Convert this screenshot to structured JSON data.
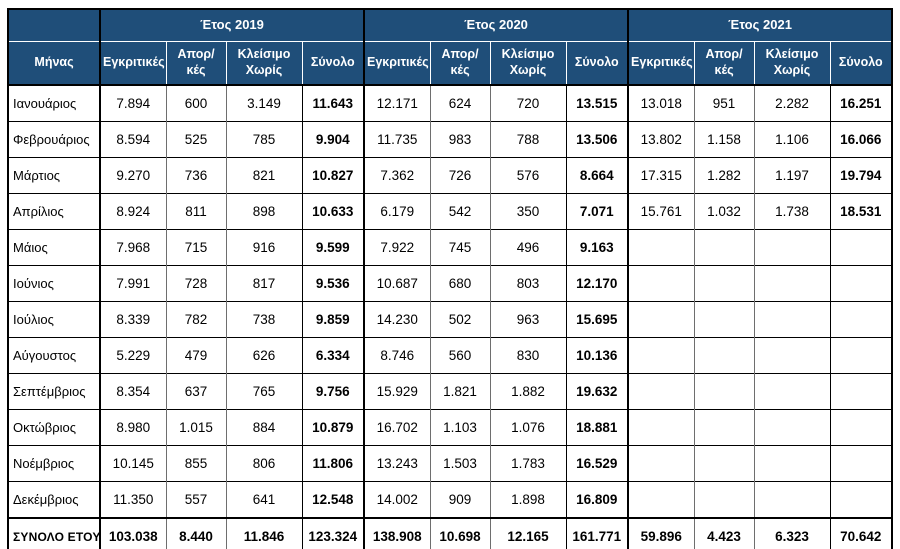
{
  "table": {
    "corner_label": "",
    "month_header": "Μήνας",
    "year_headers": [
      "Έτος 2019",
      "Έτος 2020",
      "Έτος 2021"
    ],
    "sub_headers": [
      "Εγκριτικές",
      "Απορ/κές",
      "Κλείσιμο Χωρίς",
      "Σύνολο"
    ],
    "rows": [
      {
        "month": "Ιανουάριος",
        "values": [
          "7.894",
          "600",
          "3.149",
          "11.643",
          "12.171",
          "624",
          "720",
          "13.515",
          "13.018",
          "951",
          "2.282",
          "16.251"
        ]
      },
      {
        "month": "Φεβρουάριος",
        "values": [
          "8.594",
          "525",
          "785",
          "9.904",
          "11.735",
          "983",
          "788",
          "13.506",
          "13.802",
          "1.158",
          "1.106",
          "16.066"
        ]
      },
      {
        "month": "Μάρτιος",
        "values": [
          "9.270",
          "736",
          "821",
          "10.827",
          "7.362",
          "726",
          "576",
          "8.664",
          "17.315",
          "1.282",
          "1.197",
          "19.794"
        ]
      },
      {
        "month": "Απρίλιος",
        "values": [
          "8.924",
          "811",
          "898",
          "10.633",
          "6.179",
          "542",
          "350",
          "7.071",
          "15.761",
          "1.032",
          "1.738",
          "18.531"
        ]
      },
      {
        "month": "Μάιος",
        "values": [
          "7.968",
          "715",
          "916",
          "9.599",
          "7.922",
          "745",
          "496",
          "9.163",
          "",
          "",
          "",
          ""
        ]
      },
      {
        "month": "Ιούνιος",
        "values": [
          "7.991",
          "728",
          "817",
          "9.536",
          "10.687",
          "680",
          "803",
          "12.170",
          "",
          "",
          "",
          ""
        ]
      },
      {
        "month": "Ιούλιος",
        "values": [
          "8.339",
          "782",
          "738",
          "9.859",
          "14.230",
          "502",
          "963",
          "15.695",
          "",
          "",
          "",
          ""
        ]
      },
      {
        "month": "Αύγουστος",
        "values": [
          "5.229",
          "479",
          "626",
          "6.334",
          "8.746",
          "560",
          "830",
          "10.136",
          "",
          "",
          "",
          ""
        ]
      },
      {
        "month": "Σεπτέμβριος",
        "values": [
          "8.354",
          "637",
          "765",
          "9.756",
          "15.929",
          "1.821",
          "1.882",
          "19.632",
          "",
          "",
          "",
          ""
        ]
      },
      {
        "month": "Οκτώβριος",
        "values": [
          "8.980",
          "1.015",
          "884",
          "10.879",
          "16.702",
          "1.103",
          "1.076",
          "18.881",
          "",
          "",
          "",
          ""
        ]
      },
      {
        "month": "Νοέμβριος",
        "values": [
          "10.145",
          "855",
          "806",
          "11.806",
          "13.243",
          "1.503",
          "1.783",
          "16.529",
          "",
          "",
          "",
          ""
        ]
      },
      {
        "month": "Δεκέμβριος",
        "values": [
          "11.350",
          "557",
          "641",
          "12.548",
          "14.002",
          "909",
          "1.898",
          "16.809",
          "",
          "",
          "",
          ""
        ]
      }
    ],
    "total_row": {
      "month": "ΣΥΝΟΛΟ ΕΤΟΥΣ",
      "values": [
        "103.038",
        "8.440",
        "11.846",
        "123.324",
        "138.908",
        "10.698",
        "12.165",
        "161.771",
        "59.896",
        "4.423",
        "6.323",
        "70.642"
      ]
    }
  },
  "colors": {
    "header_bg": "#1F4E79",
    "header_text": "#FFFFFF",
    "grid_strong": "#000000",
    "grid_inner": "#6E6E6E",
    "cell_bg": "#FFFFFF",
    "cell_text": "#000000"
  }
}
